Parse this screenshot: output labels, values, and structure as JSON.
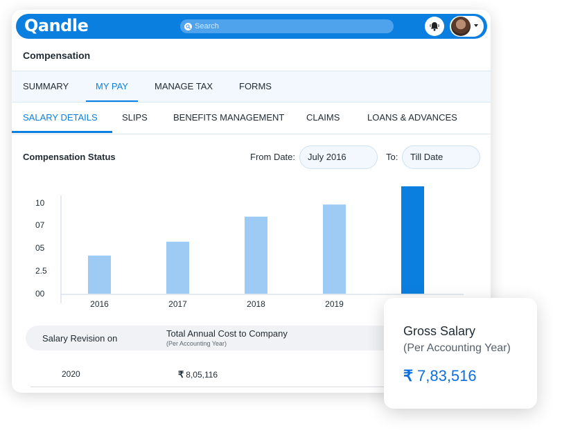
{
  "app": {
    "logo": "Qandle"
  },
  "search": {
    "placeholder": "Search"
  },
  "icons": {
    "search": "search-icon",
    "bell": "bell-icon",
    "avatar": "user-avatar",
    "caret": "chevron-down-icon"
  },
  "colors": {
    "brand": "#0b7fe0",
    "bar_light": "#9dcbf3",
    "bar_highlight": "#0b7fe0",
    "value_text": "#0b6fe0"
  },
  "page": {
    "title": "Compensation"
  },
  "tabs_primary": [
    {
      "label": "SUMMARY",
      "active": false
    },
    {
      "label": "MY PAY",
      "active": true
    },
    {
      "label": "MANAGE TAX",
      "active": false
    },
    {
      "label": "FORMS",
      "active": false
    }
  ],
  "tabs_secondary": [
    {
      "label": "SALARY DETAILS",
      "active": true
    },
    {
      "label": "SLIPS",
      "active": false
    },
    {
      "label": "BENEFITS MANAGEMENT",
      "active": false
    },
    {
      "label": "CLAIMS",
      "active": false
    },
    {
      "label": "LOANS & ADVANCES",
      "active": false
    }
  ],
  "status": {
    "title": "Compensation Status",
    "from_label": "From Date:",
    "from_value": "July 2016",
    "to_label": "To:",
    "to_value": "Till Date"
  },
  "chart_data": {
    "type": "bar",
    "categories": [
      "2016",
      "2017",
      "2018",
      "2019",
      ""
    ],
    "values": [
      4.4,
      6.0,
      8.9,
      10.3,
      12.4
    ],
    "yticks": [
      "00",
      "2.5",
      "05",
      "07",
      "10"
    ],
    "ylim": [
      0,
      12.4
    ],
    "highlight_index": 4,
    "grid": false
  },
  "table": {
    "col1_header": "Salary Revision on",
    "col2_header": "Total Annual Cost to Company",
    "col2_subheader": "(Per Accounting Year)",
    "rows": [
      {
        "year": "2020",
        "currency": "₹",
        "amount": "8,05,116"
      }
    ]
  },
  "popup": {
    "title": "Gross Salary",
    "subtitle": "(Per Accounting Year)",
    "currency": "₹",
    "value": "7,83,516"
  }
}
